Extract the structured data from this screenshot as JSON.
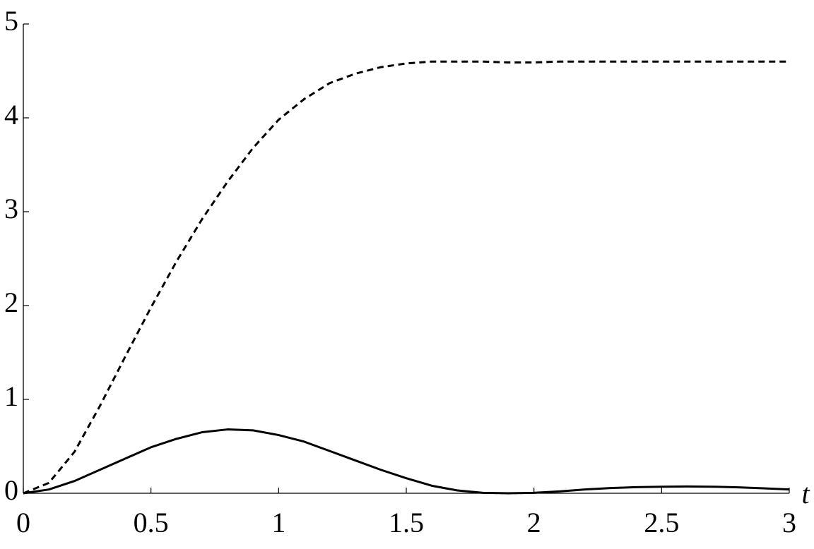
{
  "chart_data": {
    "type": "line",
    "x_label": "t",
    "x": [
      0,
      0.1,
      0.2,
      0.3,
      0.4,
      0.5,
      0.6,
      0.7,
      0.8,
      0.9,
      1.0,
      1.1,
      1.2,
      1.3,
      1.4,
      1.5,
      1.6,
      1.7,
      1.8,
      1.9,
      2.0,
      2.1,
      2.2,
      2.3,
      2.4,
      2.5,
      2.6,
      2.7,
      2.8,
      2.9,
      3.0
    ],
    "series": [
      {
        "color": "#000000",
        "dashed": true,
        "values": [
          0,
          0.11,
          0.44,
          0.93,
          1.46,
          1.98,
          2.47,
          2.92,
          3.32,
          3.68,
          3.98,
          4.2,
          4.37,
          4.47,
          4.54,
          4.58,
          4.6,
          4.6,
          4.6,
          4.59,
          4.59,
          4.6,
          4.6,
          4.6,
          4.6,
          4.6,
          4.6,
          4.6,
          4.6,
          4.6,
          4.6
        ]
      },
      {
        "color": "#000000",
        "dashed": false,
        "values": [
          0,
          0.04,
          0.13,
          0.25,
          0.37,
          0.49,
          0.58,
          0.65,
          0.68,
          0.67,
          0.62,
          0.55,
          0.45,
          0.35,
          0.25,
          0.16,
          0.08,
          0.03,
          0.005,
          0,
          0.005,
          0.02,
          0.04,
          0.055,
          0.065,
          0.07,
          0.072,
          0.07,
          0.063,
          0.053,
          0.04
        ]
      }
    ],
    "xlim": [
      0,
      3
    ],
    "ylim": [
      0,
      5
    ],
    "xticks": [
      0,
      0.5,
      1,
      1.5,
      2,
      2.5,
      3
    ],
    "yticks": [
      0,
      1,
      2,
      3,
      4,
      5
    ],
    "grid": false
  }
}
